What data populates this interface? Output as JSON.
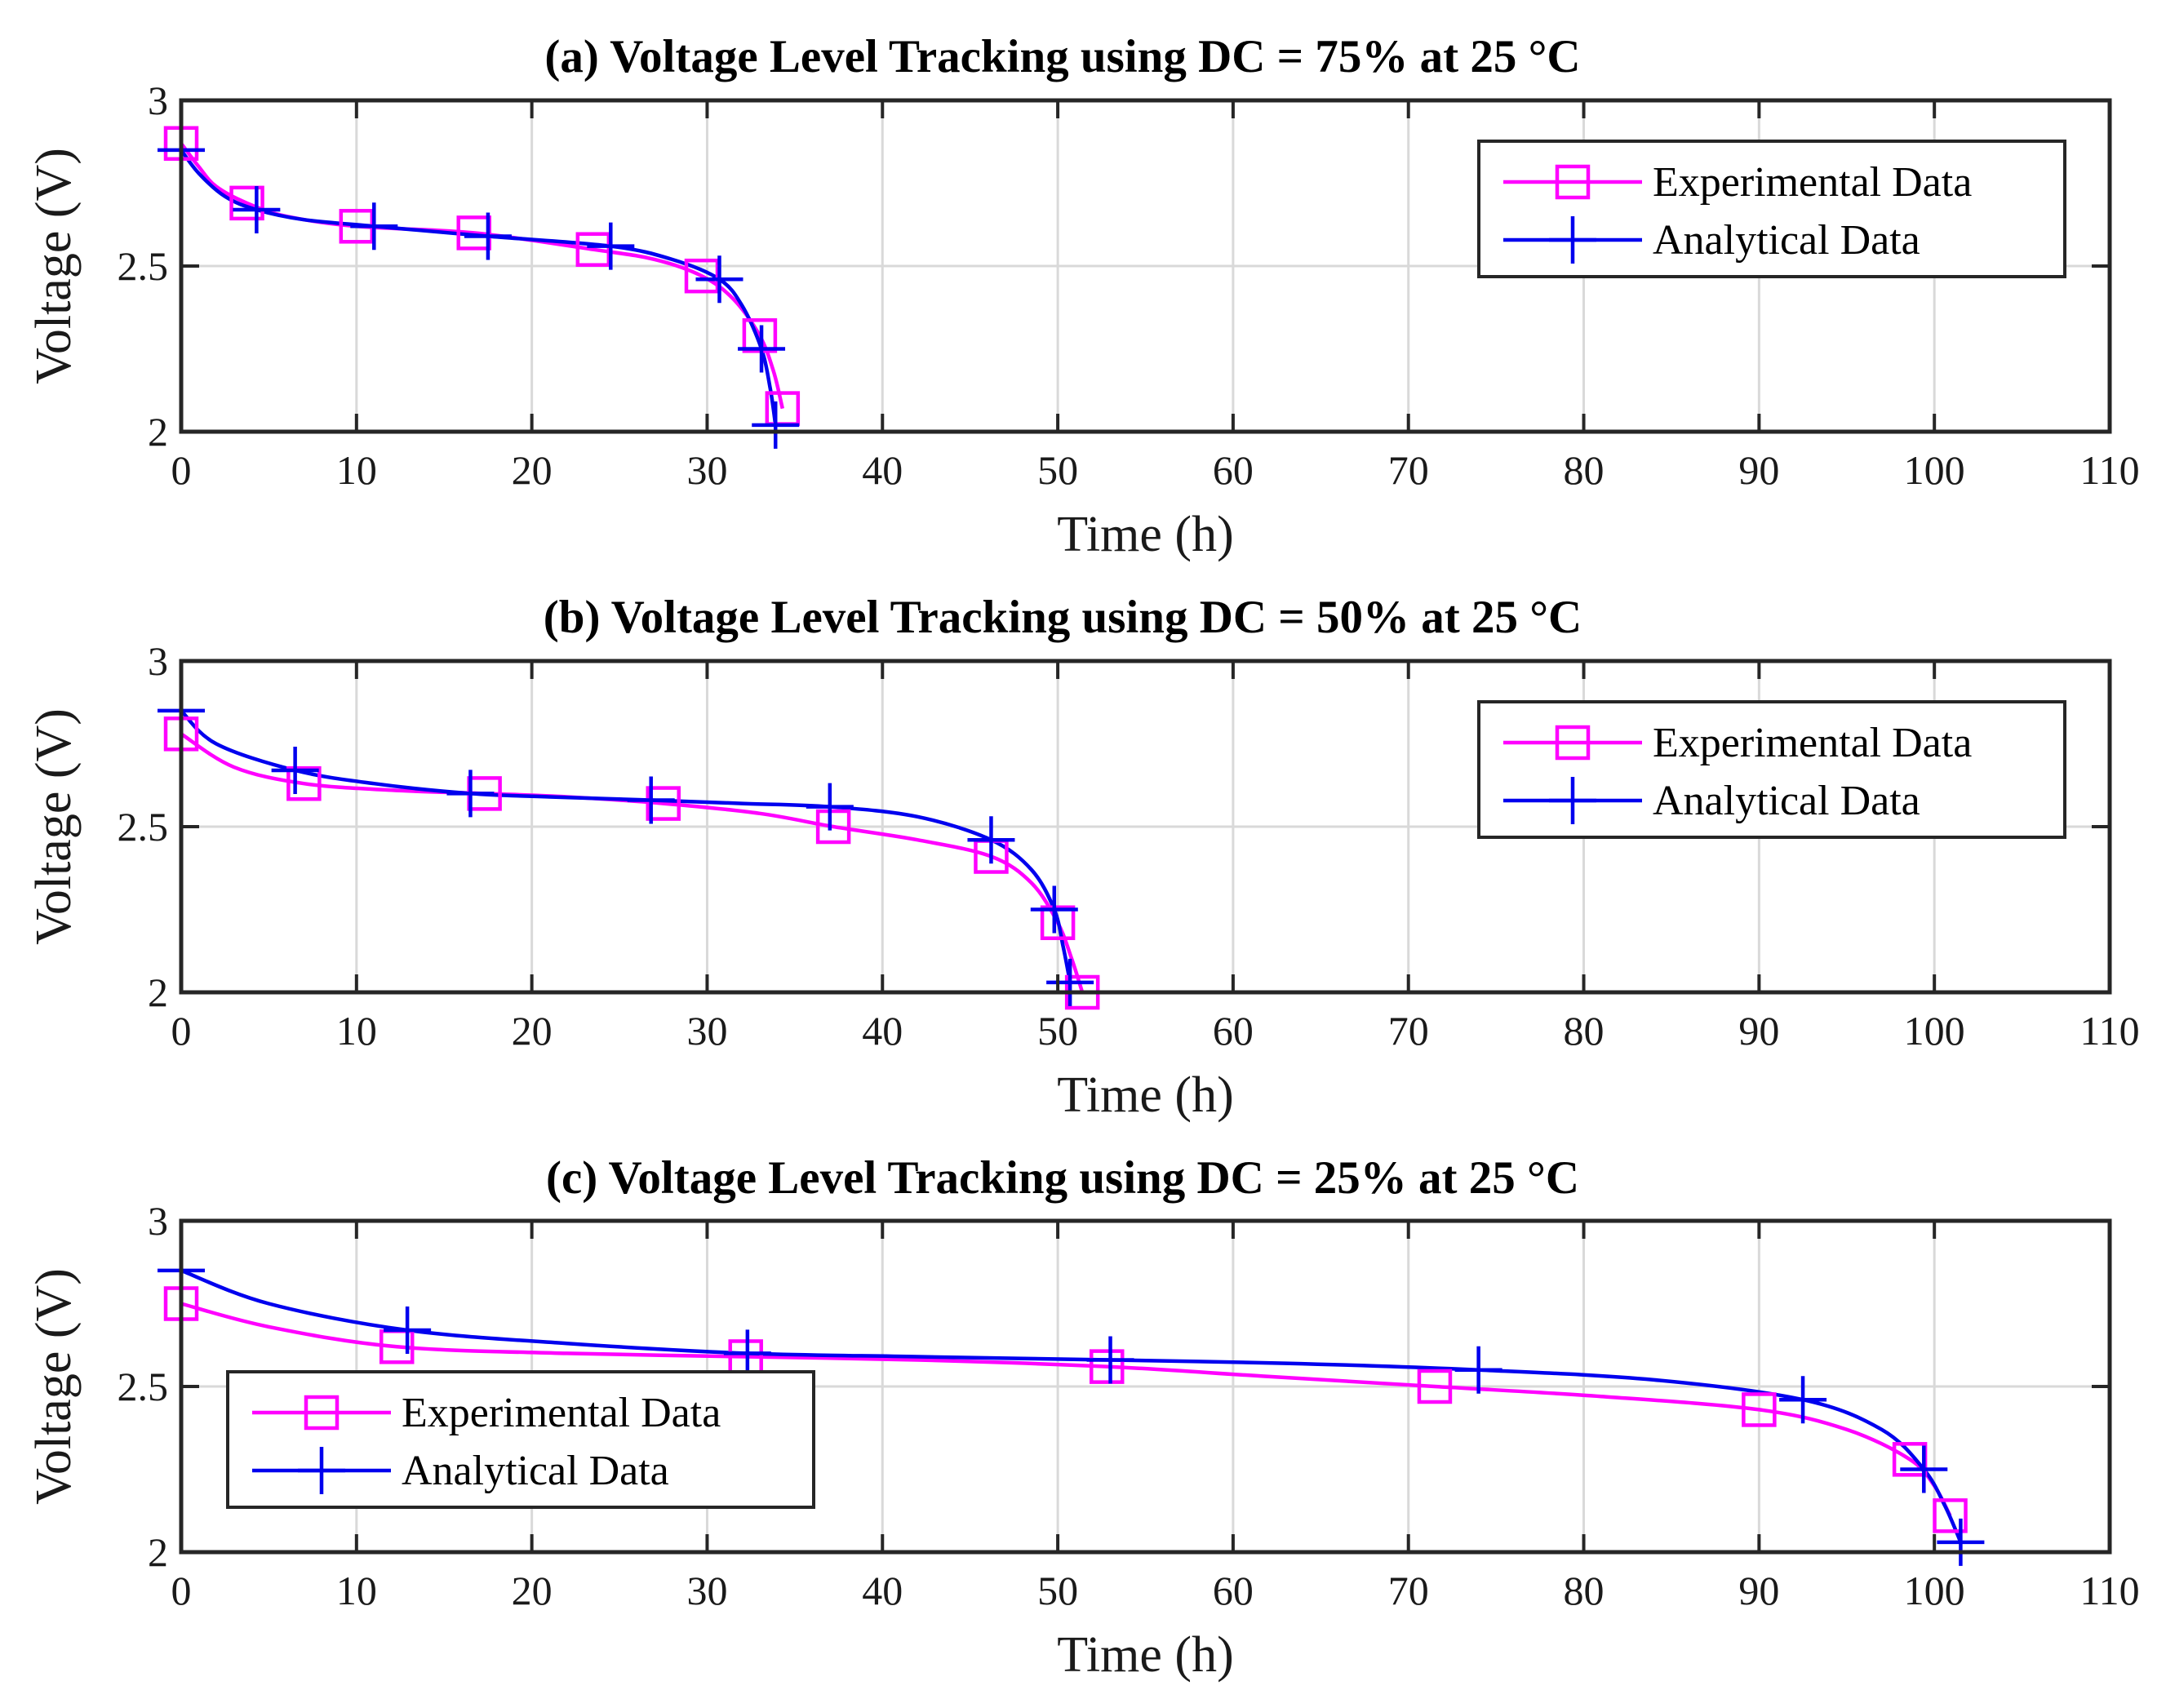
{
  "colors": {
    "experimental": "#ff00ff",
    "analytical": "#0000ee",
    "axis": "#262626",
    "grid": "#d9d9d9"
  },
  "chart_data": [
    {
      "type": "line",
      "title": "(a) Voltage Level Tracking using DC = 75% at 25 °C",
      "xlabel": "Time (h)",
      "ylabel": "Voltage (V)",
      "xlim": [
        0,
        110
      ],
      "ylim": [
        2,
        3
      ],
      "xticks": [
        "0",
        "10",
        "20",
        "30",
        "40",
        "50",
        "60",
        "70",
        "80",
        "90",
        "100",
        "110"
      ],
      "yticks": [
        "2",
        "2.5",
        "3"
      ],
      "grid": true,
      "legend_position": "top-right",
      "series": [
        {
          "name": "Experimental Data",
          "marker": "square",
          "x": [
            0,
            3.75,
            10,
            16.7,
            23.5,
            29.7,
            33,
            34.3
          ],
          "y": [
            2.87,
            2.69,
            2.62,
            2.6,
            2.55,
            2.47,
            2.29,
            2.07
          ],
          "curve_x": [
            0,
            1,
            2,
            3.75,
            6,
            10,
            16.7,
            23.5,
            27,
            29.7,
            31.5,
            33,
            33.8,
            34.3
          ],
          "curve_y": [
            2.87,
            2.8,
            2.74,
            2.69,
            2.65,
            2.62,
            2.6,
            2.55,
            2.52,
            2.47,
            2.4,
            2.29,
            2.18,
            2.07
          ]
        },
        {
          "name": "Analytical Data",
          "marker": "plus",
          "x": [
            0,
            4.3,
            11,
            17.5,
            24.5,
            30.7,
            33.1,
            33.9
          ],
          "y": [
            2.85,
            2.67,
            2.62,
            2.59,
            2.56,
            2.46,
            2.25,
            2.02
          ],
          "curve_x": [
            0,
            1,
            2.5,
            4.3,
            7,
            11,
            17.5,
            24.5,
            28,
            30.7,
            32,
            33.1,
            33.6,
            33.9
          ],
          "curve_y": [
            2.85,
            2.78,
            2.71,
            2.67,
            2.64,
            2.62,
            2.59,
            2.56,
            2.52,
            2.46,
            2.38,
            2.25,
            2.13,
            2.02
          ]
        }
      ]
    },
    {
      "type": "line",
      "title": "(b) Voltage Level Tracking using DC = 50% at 25 °C",
      "xlabel": "Time (h)",
      "ylabel": "Voltage (V)",
      "xlim": [
        0,
        110
      ],
      "ylim": [
        2,
        3
      ],
      "xticks": [
        "0",
        "10",
        "20",
        "30",
        "40",
        "50",
        "60",
        "70",
        "80",
        "90",
        "100",
        "110"
      ],
      "yticks": [
        "2",
        "2.5",
        "3"
      ],
      "grid": true,
      "legend_position": "top-right",
      "series": [
        {
          "name": "Experimental Data",
          "marker": "square",
          "x": [
            0,
            7,
            17.3,
            27.5,
            37.2,
            46.2,
            50,
            51.4
          ],
          "y": [
            2.78,
            2.63,
            2.6,
            2.57,
            2.5,
            2.41,
            2.21,
            2.0
          ],
          "curve_x": [
            0,
            3,
            7,
            12,
            17.3,
            22,
            27.5,
            33,
            37.2,
            42,
            46.2,
            48.5,
            50,
            50.8,
            51.4
          ],
          "curve_y": [
            2.78,
            2.68,
            2.63,
            2.61,
            2.6,
            2.59,
            2.57,
            2.54,
            2.5,
            2.46,
            2.41,
            2.33,
            2.21,
            2.1,
            2.0
          ]
        },
        {
          "name": "Analytical Data",
          "marker": "plus",
          "x": [
            0,
            6.5,
            16.5,
            26.8,
            37,
            46.2,
            49.8,
            50.7
          ],
          "y": [
            2.85,
            2.67,
            2.6,
            2.58,
            2.56,
            2.46,
            2.25,
            2.03
          ],
          "curve_x": [
            0,
            2,
            6.5,
            11,
            16.5,
            21,
            26.8,
            32,
            37,
            42,
            46.2,
            48.5,
            49.8,
            50.3,
            50.7
          ],
          "curve_y": [
            2.85,
            2.75,
            2.67,
            2.63,
            2.6,
            2.59,
            2.58,
            2.57,
            2.56,
            2.53,
            2.46,
            2.37,
            2.25,
            2.14,
            2.03
          ]
        }
      ]
    },
    {
      "type": "line",
      "title": "(c) Voltage Level Tracking using DC = 25% at 25 °C",
      "xlabel": "Time (h)",
      "ylabel": "Voltage (V)",
      "xlim": [
        0,
        110
      ],
      "ylim": [
        2,
        3
      ],
      "xticks": [
        "0",
        "10",
        "20",
        "30",
        "40",
        "50",
        "60",
        "70",
        "80",
        "90",
        "100",
        "110"
      ],
      "yticks": [
        "2",
        "2.5",
        "3"
      ],
      "grid": true,
      "legend_position": "bottom-left",
      "series": [
        {
          "name": "Experimental Data",
          "marker": "square",
          "x": [
            0,
            12.3,
            32.2,
            52.8,
            71.5,
            90,
            98.6,
            100.9
          ],
          "y": [
            2.75,
            2.62,
            2.59,
            2.56,
            2.5,
            2.43,
            2.28,
            2.11
          ],
          "curve_x": [
            0,
            5,
            12.3,
            22,
            32.2,
            42,
            52.8,
            62,
            71.5,
            81,
            90,
            95,
            98.6,
            100,
            100.9
          ],
          "curve_y": [
            2.75,
            2.68,
            2.62,
            2.6,
            2.59,
            2.58,
            2.56,
            2.53,
            2.5,
            2.47,
            2.43,
            2.37,
            2.28,
            2.2,
            2.11
          ]
        },
        {
          "name": "Analytical Data",
          "marker": "plus",
          "x": [
            0,
            12.9,
            32.3,
            53,
            74,
            92.5,
            99.4,
            101.5
          ],
          "y": [
            2.85,
            2.67,
            2.6,
            2.58,
            2.55,
            2.46,
            2.25,
            2.03
          ],
          "curve_x": [
            0,
            5,
            12.9,
            22,
            32.3,
            42,
            53,
            63,
            74,
            84,
            92.5,
            97,
            99.4,
            100.6,
            101.5
          ],
          "curve_y": [
            2.85,
            2.75,
            2.67,
            2.63,
            2.6,
            2.59,
            2.58,
            2.57,
            2.55,
            2.52,
            2.46,
            2.37,
            2.25,
            2.14,
            2.03
          ]
        }
      ]
    }
  ]
}
